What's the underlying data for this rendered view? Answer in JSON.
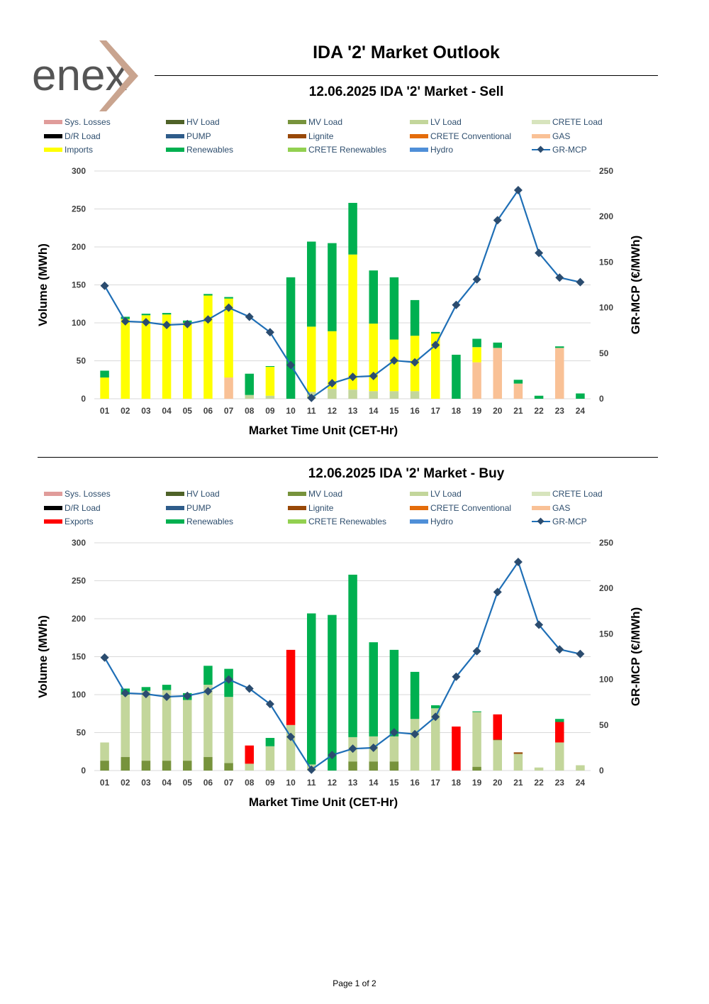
{
  "header": {
    "logo_text": "enex",
    "title": "IDA '2' Market Outlook"
  },
  "charts": {
    "sell": {
      "title": "12.06.2025  IDA '2' Market - Sell"
    },
    "buy": {
      "title": "12.06.2025  IDA '2' Market - Buy"
    }
  },
  "footer": {
    "page": "Page 1 of 2"
  },
  "chart_data": [
    {
      "type": "bar",
      "id": "sell",
      "title": "12.06.2025  IDA '2' Market - Sell",
      "xlabel": "Market Time Unit (CET-Hr)",
      "ylabel": "Volume (MWh)",
      "y2label": "GR-MCP (€/MWh)",
      "ylim": [
        0,
        300
      ],
      "y2lim": [
        0,
        250
      ],
      "yticks": [
        0,
        50,
        100,
        150,
        200,
        250,
        300
      ],
      "y2ticks": [
        0,
        50,
        100,
        150,
        200,
        250
      ],
      "grid": true,
      "legend_position": "top",
      "categories": [
        "01",
        "02",
        "03",
        "04",
        "05",
        "06",
        "07",
        "08",
        "09",
        "10",
        "11",
        "12",
        "13",
        "14",
        "15",
        "16",
        "17",
        "18",
        "19",
        "20",
        "21",
        "22",
        "23",
        "24"
      ],
      "legend": [
        {
          "name": "Sys. Losses",
          "color": "#e09c9a",
          "kind": "bar"
        },
        {
          "name": "HV Load",
          "color": "#4f6228",
          "kind": "bar"
        },
        {
          "name": "MV Load",
          "color": "#77933c",
          "kind": "bar"
        },
        {
          "name": "LV Load",
          "color": "#c3d69b",
          "kind": "bar"
        },
        {
          "name": "CRETE Load",
          "color": "#d7e4bd",
          "kind": "bar"
        },
        {
          "name": "D/R Load",
          "color": "#000000",
          "kind": "bar"
        },
        {
          "name": "PUMP",
          "color": "#2e5c8a",
          "kind": "bar"
        },
        {
          "name": "Lignite",
          "color": "#984807",
          "kind": "bar"
        },
        {
          "name": "CRETE Conventional",
          "color": "#e46c0a",
          "kind": "bar"
        },
        {
          "name": "GAS",
          "color": "#f9c196",
          "kind": "bar"
        },
        {
          "name": "Imports",
          "color": "#ffff00",
          "kind": "bar"
        },
        {
          "name": "Renewables",
          "color": "#00b050",
          "kind": "bar"
        },
        {
          "name": "CRETE Renewables",
          "color": "#92d050",
          "kind": "bar"
        },
        {
          "name": "Hydro",
          "color": "#4f8fd8",
          "kind": "bar"
        },
        {
          "name": "GR-MCP",
          "color": "#1f6fb6",
          "kind": "line"
        }
      ],
      "series": [
        {
          "name": "LV Load",
          "color": "#c3d69b",
          "values": [
            0,
            0,
            0,
            0,
            0,
            0,
            0,
            5,
            4,
            0,
            9,
            13,
            12,
            10,
            10,
            10,
            0,
            0,
            0,
            0,
            0,
            0,
            0,
            0
          ]
        },
        {
          "name": "GAS",
          "color": "#f9c196",
          "values": [
            0,
            0,
            0,
            0,
            0,
            0,
            28,
            0,
            0,
            0,
            0,
            0,
            0,
            0,
            0,
            0,
            0,
            0,
            48,
            67,
            20,
            0,
            67,
            0
          ]
        },
        {
          "name": "Imports",
          "color": "#ffff00",
          "values": [
            28,
            105,
            110,
            111,
            100,
            136,
            104,
            0,
            38,
            0,
            86,
            76,
            178,
            89,
            68,
            73,
            86,
            0,
            20,
            0,
            0,
            0,
            0,
            0
          ]
        },
        {
          "name": "Renewables",
          "color": "#00b050",
          "values": [
            9,
            3,
            2,
            2,
            3,
            2,
            2,
            28,
            1,
            160,
            112,
            116,
            68,
            70,
            82,
            47,
            2,
            58,
            11,
            7,
            5,
            4,
            2,
            7
          ]
        }
      ],
      "line": {
        "name": "GR-MCP",
        "color": "#1f6fb6",
        "values": [
          124,
          85,
          84,
          81,
          82,
          87,
          100,
          90,
          73,
          37,
          1,
          17,
          24,
          25,
          42,
          40,
          59,
          103,
          131,
          196,
          229,
          160,
          133,
          128
        ]
      }
    },
    {
      "type": "bar",
      "id": "buy",
      "title": "12.06.2025  IDA '2' Market - Buy",
      "xlabel": "Market Time Unit (CET-Hr)",
      "ylabel": "Volume (MWh)",
      "y2label": "GR-MCP (€/MWh)",
      "ylim": [
        0,
        300
      ],
      "y2lim": [
        0,
        250
      ],
      "yticks": [
        0,
        50,
        100,
        150,
        200,
        250,
        300
      ],
      "y2ticks": [
        0,
        50,
        100,
        150,
        200,
        250
      ],
      "grid": true,
      "legend_position": "top",
      "categories": [
        "01",
        "02",
        "03",
        "04",
        "05",
        "06",
        "07",
        "08",
        "09",
        "10",
        "11",
        "12",
        "13",
        "14",
        "15",
        "16",
        "17",
        "18",
        "19",
        "20",
        "21",
        "22",
        "23",
        "24"
      ],
      "legend": [
        {
          "name": "Sys. Losses",
          "color": "#e09c9a",
          "kind": "bar"
        },
        {
          "name": "HV Load",
          "color": "#4f6228",
          "kind": "bar"
        },
        {
          "name": "MV Load",
          "color": "#77933c",
          "kind": "bar"
        },
        {
          "name": "LV Load",
          "color": "#c3d69b",
          "kind": "bar"
        },
        {
          "name": "CRETE Load",
          "color": "#d7e4bd",
          "kind": "bar"
        },
        {
          "name": "D/R Load",
          "color": "#000000",
          "kind": "bar"
        },
        {
          "name": "PUMP",
          "color": "#2e5c8a",
          "kind": "bar"
        },
        {
          "name": "Lignite",
          "color": "#984807",
          "kind": "bar"
        },
        {
          "name": "CRETE Conventional",
          "color": "#e46c0a",
          "kind": "bar"
        },
        {
          "name": "GAS",
          "color": "#f9c196",
          "kind": "bar"
        },
        {
          "name": "Exports",
          "color": "#ff0000",
          "kind": "bar"
        },
        {
          "name": "Renewables",
          "color": "#00b050",
          "kind": "bar"
        },
        {
          "name": "CRETE Renewables",
          "color": "#92d050",
          "kind": "bar"
        },
        {
          "name": "Hydro",
          "color": "#4f8fd8",
          "kind": "bar"
        },
        {
          "name": "GR-MCP",
          "color": "#1f6fb6",
          "kind": "line"
        }
      ],
      "series": [
        {
          "name": "MV Load",
          "color": "#77933c",
          "values": [
            13,
            18,
            13,
            13,
            13,
            18,
            10,
            0,
            0,
            0,
            0,
            0,
            12,
            12,
            12,
            0,
            0,
            0,
            5,
            0,
            0,
            0,
            0,
            0
          ]
        },
        {
          "name": "LV Load",
          "color": "#c3d69b",
          "values": [
            24,
            82,
            92,
            93,
            80,
            95,
            87,
            9,
            32,
            60,
            8,
            0,
            32,
            33,
            33,
            68,
            82,
            0,
            72,
            40,
            22,
            4,
            37,
            7
          ]
        },
        {
          "name": "Lignite",
          "color": "#984807",
          "values": [
            0,
            0,
            0,
            0,
            0,
            0,
            0,
            0,
            0,
            0,
            0,
            0,
            0,
            0,
            0,
            0,
            0,
            0,
            0,
            1,
            2,
            0,
            0,
            0
          ]
        },
        {
          "name": "Exports",
          "color": "#ff0000",
          "values": [
            0,
            0,
            0,
            0,
            0,
            0,
            0,
            24,
            0,
            99,
            0,
            0,
            0,
            0,
            0,
            0,
            0,
            58,
            0,
            33,
            0,
            0,
            27,
            0
          ]
        },
        {
          "name": "Renewables",
          "color": "#00b050",
          "values": [
            0,
            8,
            5,
            7,
            9,
            25,
            37,
            0,
            11,
            0,
            199,
            205,
            214,
            124,
            114,
            62,
            4,
            0,
            1,
            0,
            0,
            0,
            4,
            0
          ]
        }
      ],
      "line": {
        "name": "GR-MCP",
        "color": "#1f6fb6",
        "values": [
          124,
          85,
          84,
          81,
          82,
          87,
          100,
          90,
          73,
          37,
          1,
          17,
          24,
          25,
          42,
          40,
          59,
          103,
          131,
          196,
          229,
          160,
          133,
          128
        ]
      }
    }
  ]
}
